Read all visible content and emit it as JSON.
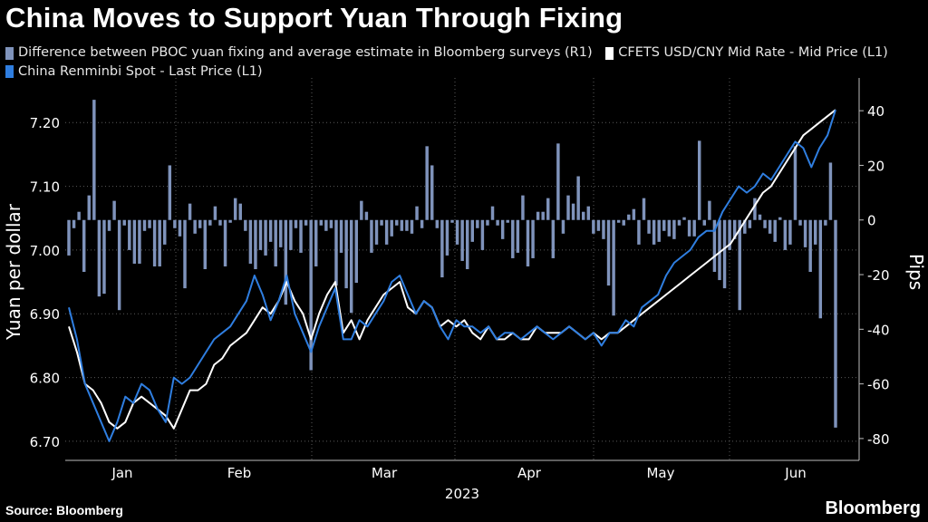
{
  "title": "China Moves to Support Yuan Through Fixing",
  "legend": [
    {
      "label": "Difference between PBOC yuan fixing and average estimate in Bloomberg surveys (R1)",
      "color": "#7f93bb"
    },
    {
      "label": "CFETS USD/CNY Mid Rate - Mid Price (L1)",
      "color": "#ffffff"
    },
    {
      "label": "China Renminbi Spot - Last Price (L1)",
      "color": "#2f7ee0"
    }
  ],
  "source": "Source: Bloomberg",
  "brand": "Bloomberg",
  "chart_data": {
    "type": "line",
    "x_tick_labels": [
      "Jan",
      "Feb",
      "Mar",
      "Apr",
      "May",
      "Jun"
    ],
    "x_axis_year_label": "2023",
    "ylabel_left": "Yuan per dollar",
    "ylabel_right": "Pips",
    "ylim_left": [
      6.67,
      7.27
    ],
    "ylim_right": [
      -88,
      52
    ],
    "yticks_left": [
      "6.70",
      "6.80",
      "6.90",
      "7.00",
      "7.10",
      "7.20"
    ],
    "yticks_right": [
      "-80",
      "-60",
      "-40",
      "-20",
      "0",
      "20",
      "40"
    ],
    "grid": true,
    "legend_position": "top",
    "series": [
      {
        "name": "Difference between PBOC yuan fixing and average estimate in Bloomberg surveys (R1)",
        "type": "bar",
        "axis": "right",
        "color": "#7f93bb",
        "values": [
          -13,
          -3,
          3,
          -19,
          9,
          44,
          -28,
          -27,
          -4,
          7,
          -33,
          -2,
          -11,
          -16,
          -16,
          -4,
          -3,
          -17,
          -17,
          -9,
          20,
          -3,
          -6,
          -25,
          6,
          -5,
          -3,
          -18,
          -2,
          5,
          -2,
          -17,
          -1,
          8,
          6,
          -4,
          -16,
          -18,
          -11,
          -13,
          -8,
          -17,
          -10,
          -31,
          -11,
          -3,
          -12,
          -2,
          -55,
          -17,
          -2,
          -4,
          -3,
          -24,
          -12,
          -25,
          -34,
          -23,
          7,
          3,
          -12,
          -9,
          -2,
          -9,
          -6,
          -2,
          -4,
          -4,
          -5,
          5,
          -3,
          27,
          20,
          -3,
          -21,
          -13,
          -1,
          -9,
          -15,
          -18,
          -8,
          -3,
          -11,
          -2,
          5,
          -2,
          -7,
          -1,
          -14,
          -12,
          9,
          -17,
          -14,
          3,
          3,
          8,
          -14,
          28,
          -5,
          9,
          6,
          16,
          3,
          5,
          -5,
          -4,
          -7,
          -24,
          -35,
          -1,
          -2,
          2,
          4,
          -9,
          8,
          -5,
          -9,
          -8,
          -4,
          -6,
          -7,
          -2,
          1,
          -6,
          -6,
          29,
          -2,
          7,
          -19,
          -22,
          -25,
          -11,
          -7,
          -33,
          -5,
          -3,
          8,
          2,
          -3,
          -5,
          -8,
          1,
          -11,
          -9,
          27,
          -2,
          -10,
          -19,
          -9,
          -36,
          -2,
          21,
          -76
        ]
      },
      {
        "name": "CFETS USD/CNY Mid Rate - Mid Price (L1)",
        "type": "line",
        "axis": "left",
        "color": "#ffffff",
        "values": [
          6.88,
          6.84,
          6.79,
          6.78,
          6.76,
          6.73,
          6.72,
          6.73,
          6.76,
          6.77,
          6.76,
          6.75,
          6.74,
          6.72,
          6.75,
          6.78,
          6.78,
          6.79,
          6.82,
          6.83,
          6.85,
          6.86,
          6.87,
          6.89,
          6.91,
          6.9,
          6.92,
          6.95,
          6.92,
          6.9,
          6.86,
          6.9,
          6.93,
          6.95,
          6.87,
          6.89,
          6.86,
          6.89,
          6.91,
          6.93,
          6.94,
          6.95,
          6.91,
          6.9,
          6.92,
          6.91,
          6.88,
          6.89,
          6.88,
          6.89,
          6.87,
          6.86,
          6.88,
          6.86,
          6.86,
          6.87,
          6.86,
          6.86,
          6.88,
          6.87,
          6.87,
          6.87,
          6.88,
          6.87,
          6.86,
          6.87,
          6.86,
          6.87,
          6.87,
          6.88,
          6.89,
          6.9,
          6.91,
          6.92,
          6.93,
          6.94,
          6.95,
          6.96,
          6.97,
          6.98,
          6.99,
          7.0,
          7.01,
          7.03,
          7.05,
          7.07,
          7.09,
          7.1,
          7.12,
          7.14,
          7.16,
          7.18,
          7.19,
          7.2,
          7.21,
          7.22
        ]
      },
      {
        "name": "China Renminbi Spot - Last Price (L1)",
        "type": "line",
        "axis": "left",
        "color": "#2f7ee0",
        "values": [
          6.91,
          6.86,
          6.79,
          6.76,
          6.73,
          6.7,
          6.73,
          6.77,
          6.76,
          6.79,
          6.78,
          6.75,
          6.73,
          6.8,
          6.79,
          6.8,
          6.82,
          6.84,
          6.86,
          6.87,
          6.88,
          6.9,
          6.92,
          6.96,
          6.93,
          6.89,
          6.92,
          6.96,
          6.9,
          6.87,
          6.84,
          6.88,
          6.91,
          6.94,
          6.86,
          6.86,
          6.89,
          6.88,
          6.9,
          6.92,
          6.95,
          6.96,
          6.93,
          6.9,
          6.92,
          6.91,
          6.88,
          6.86,
          6.89,
          6.88,
          6.88,
          6.87,
          6.88,
          6.86,
          6.87,
          6.87,
          6.86,
          6.87,
          6.88,
          6.87,
          6.86,
          6.87,
          6.88,
          6.87,
          6.86,
          6.87,
          6.85,
          6.87,
          6.87,
          6.89,
          6.88,
          6.91,
          6.92,
          6.93,
          6.96,
          6.98,
          6.99,
          7.0,
          7.02,
          7.03,
          7.03,
          7.06,
          7.08,
          7.1,
          7.09,
          7.1,
          7.12,
          7.11,
          7.13,
          7.15,
          7.17,
          7.16,
          7.13,
          7.16,
          7.18,
          7.22
        ]
      }
    ]
  }
}
